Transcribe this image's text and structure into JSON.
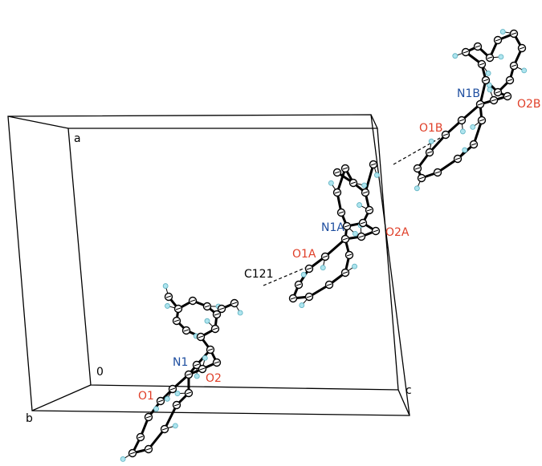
{
  "axes": [
    {
      "label": "a"
    },
    {
      "label": "b"
    },
    {
      "label": "0"
    },
    {
      "label": "c"
    }
  ],
  "atoms": [
    {
      "label": "N1"
    },
    {
      "label": "O1"
    },
    {
      "label": "O2"
    },
    {
      "label": "C121"
    },
    {
      "label": "N1A"
    },
    {
      "label": "O1A"
    },
    {
      "label": "O2A"
    },
    {
      "label": "N1B"
    },
    {
      "label": "O1B"
    },
    {
      "label": "O2B"
    }
  ]
}
